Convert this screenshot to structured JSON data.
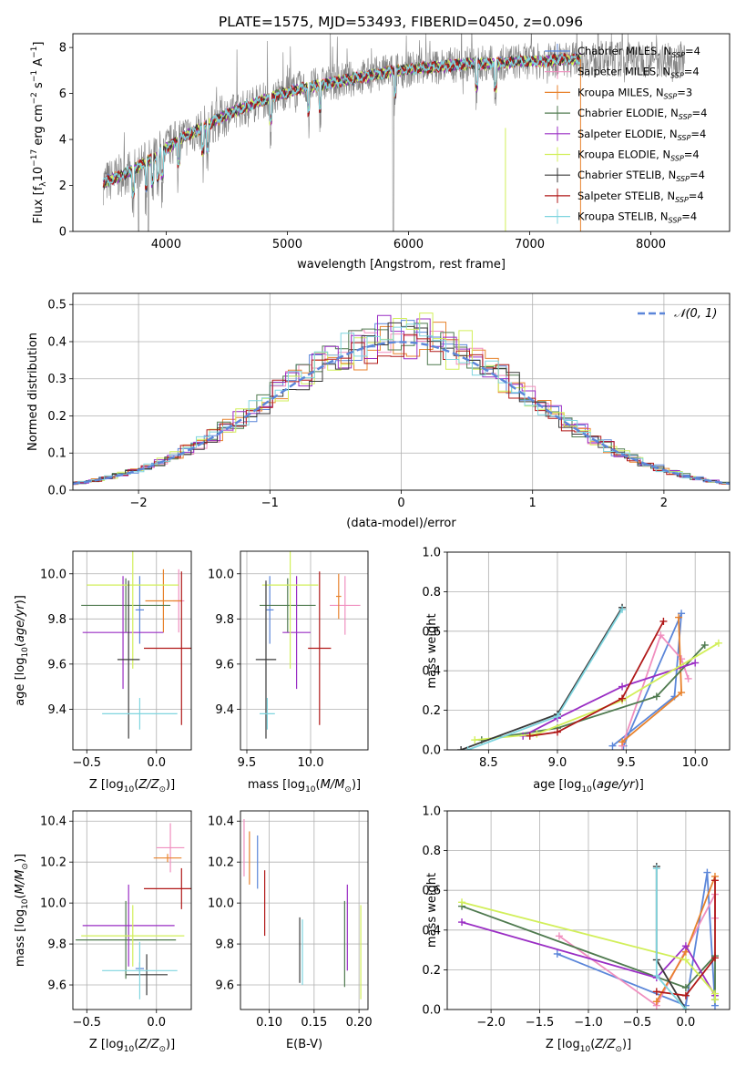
{
  "figure_title": "PLATE=1575, MJD=53493, FIBERID=0450, z=0.096",
  "colors": {
    "Chabrier MILES": "#5b86d9",
    "Salpeter MILES": "#f08fbf",
    "Kroupa MILES": "#e8822c",
    "Chabrier ELODIE": "#4f7a4f",
    "Salpeter ELODIE": "#9a2ec4",
    "Kroupa ELODIE": "#d2ef5a",
    "Chabrier STELIB": "#3a3a3a",
    "Salpeter STELIB": "#b01818",
    "Kroupa STELIB": "#7fd5df",
    "data": "#808080",
    "gaussian": "#5b86d9",
    "grid": "#b0b0b0"
  },
  "chart_data": [
    {
      "id": "spectrum",
      "type": "line",
      "xlabel": "wavelength [Angstrom, rest frame]",
      "ylabel": "Flux [f$_\\lambda$10$^{-17}$ erg cm$^{-2}$ s$^{-1}$ A$^{-1}$]",
      "xlim": [
        3230,
        8650
      ],
      "ylim": [
        0,
        8.6
      ],
      "xticks": [
        4000,
        5000,
        6000,
        7000,
        8000
      ],
      "yticks": [
        0,
        2,
        4,
        6,
        8
      ],
      "grid": false,
      "legend_position": "right",
      "legend": [
        {
          "label": "Chabrier MILES, N",
          "sub": "SSP",
          "suffix": "=4"
        },
        {
          "label": "Salpeter MILES, N",
          "sub": "SSP",
          "suffix": "=4"
        },
        {
          "label": "Kroupa MILES, N",
          "sub": "SSP",
          "suffix": "=3"
        },
        {
          "label": "Chabrier ELODIE, N",
          "sub": "SSP",
          "suffix": "=4"
        },
        {
          "label": "Salpeter ELODIE, N",
          "sub": "SSP",
          "suffix": "=4"
        },
        {
          "label": "Kroupa ELODIE, N",
          "sub": "SSP",
          "suffix": "=4"
        },
        {
          "label": "Chabrier STELIB, N",
          "sub": "SSP",
          "suffix": "=4"
        },
        {
          "label": "Salpeter STELIB, N",
          "sub": "SSP",
          "suffix": "=4"
        },
        {
          "label": "Kroupa STELIB, N",
          "sub": "SSP",
          "suffix": "=4"
        }
      ],
      "continuum": {
        "wavelength": [
          3480,
          3700,
          3900,
          4100,
          4300,
          4500,
          4700,
          4900,
          5100,
          5300,
          5500,
          5700,
          5900,
          6100,
          6300,
          6500,
          6700,
          6900,
          7100,
          7300,
          7420
        ],
        "flux": [
          2.1,
          2.6,
          3.2,
          4.0,
          4.5,
          5.1,
          5.5,
          5.9,
          6.2,
          6.4,
          6.6,
          6.8,
          7.0,
          7.1,
          7.2,
          7.3,
          7.3,
          7.4,
          7.4,
          7.5,
          7.5
        ]
      },
      "data_range": [
        3480,
        8280
      ],
      "model_range": [
        3480,
        7420
      ]
    },
    {
      "id": "residuals",
      "type": "line",
      "xlabel": "(data-model)/error",
      "ylabel": "Normed distribution",
      "xlim": [
        -2.5,
        2.5
      ],
      "ylim": [
        0,
        0.53
      ],
      "xticks": [
        -2,
        -1,
        0,
        1,
        2
      ],
      "yticks": [
        0.0,
        0.1,
        0.2,
        0.3,
        0.4,
        0.5
      ],
      "grid": true,
      "legend_position": "top-right",
      "gaussian_label": "N(0,1)",
      "bin_width": 0.1
    },
    {
      "id": "age_vs_Z",
      "type": "scatter",
      "xlabel": "Z [log10(Z/Z⊙)]",
      "ylabel": "age [log10(age/yr)]",
      "xlim": [
        -0.6,
        0.25
      ],
      "ylim": [
        9.22,
        10.1
      ],
      "xticks": [
        -0.5,
        0.0
      ],
      "yticks": [
        9.4,
        9.6,
        9.8,
        10.0
      ],
      "grid": true,
      "points": [
        {
          "model": "Chabrier MILES",
          "x": -0.12,
          "xerr": 0.03,
          "y": 9.84,
          "yerr": 0.15
        },
        {
          "model": "Salpeter MILES",
          "x": 0.16,
          "xerr": 0.04,
          "y": 9.88,
          "yerr": 0.14
        },
        {
          "model": "Kroupa MILES",
          "x": 0.05,
          "xerr": 0.13,
          "y": 9.88,
          "yerr": 0.14
        },
        {
          "model": "Chabrier ELODIE",
          "x": -0.22,
          "xerr": 0.32,
          "y": 9.86,
          "yerr": 0.12
        },
        {
          "model": "Salpeter ELODIE",
          "x": -0.24,
          "xerr": 0.29,
          "y": 9.74,
          "yerr": 0.25
        },
        {
          "model": "Kroupa ELODIE",
          "x": -0.17,
          "xerr": 0.33,
          "y": 9.95,
          "yerr": 0.37
        },
        {
          "model": "Chabrier STELIB",
          "x": -0.2,
          "xerr": 0.08,
          "y": 9.62,
          "yerr": 0.35
        },
        {
          "model": "Salpeter STELIB",
          "x": 0.18,
          "xerr": 0.27,
          "y": 9.67,
          "yerr": 0.34
        },
        {
          "model": "Kroupa STELIB",
          "x": -0.12,
          "xerr": 0.27,
          "y": 9.38,
          "yerr": 0.07
        }
      ]
    },
    {
      "id": "age_vs_mass",
      "type": "scatter",
      "xlabel": "mass [log10(M/M⊙)]",
      "ylabel": "",
      "xlim": [
        9.45,
        10.45
      ],
      "ylim": [
        9.22,
        10.1
      ],
      "xticks": [
        9.5,
        10.0
      ],
      "yticks": [
        9.4,
        9.6,
        9.8,
        10.0
      ],
      "grid": true,
      "points": [
        {
          "model": "Chabrier MILES",
          "x": 9.68,
          "xerr": 0.03,
          "y": 9.84,
          "yerr": 0.15
        },
        {
          "model": "Salpeter MILES",
          "x": 10.27,
          "xerr": 0.12,
          "y": 9.86,
          "yerr": 0.13
        },
        {
          "model": "Kroupa MILES",
          "x": 10.22,
          "xerr": 0.02,
          "y": 9.9,
          "yerr": 0.1
        },
        {
          "model": "Chabrier ELODIE",
          "x": 9.82,
          "xerr": 0.22,
          "y": 9.86,
          "yerr": 0.12
        },
        {
          "model": "Salpeter ELODIE",
          "x": 9.89,
          "xerr": 0.11,
          "y": 9.74,
          "yerr": 0.25
        },
        {
          "model": "Kroupa ELODIE",
          "x": 9.84,
          "xerr": 0.22,
          "y": 9.95,
          "yerr": 0.37
        },
        {
          "model": "Chabrier STELIB",
          "x": 9.65,
          "xerr": 0.08,
          "y": 9.62,
          "yerr": 0.35
        },
        {
          "model": "Salpeter STELIB",
          "x": 10.07,
          "xerr": 0.09,
          "y": 9.67,
          "yerr": 0.34
        },
        {
          "model": "Kroupa STELIB",
          "x": 9.66,
          "xerr": 0.06,
          "y": 9.38,
          "yerr": 0.07
        }
      ]
    },
    {
      "id": "mass_weight_vs_age",
      "type": "line",
      "xlabel": "age [log10(age/yr)]",
      "ylabel": "mass weight",
      "xlim": [
        8.2,
        10.25
      ],
      "ylim": [
        0,
        1.0
      ],
      "xticks": [
        8.5,
        9.0,
        9.5,
        10.0
      ],
      "yticks": [
        0.0,
        0.2,
        0.4,
        0.6,
        0.8,
        1.0
      ],
      "grid": true,
      "series": [
        {
          "model": "Chabrier MILES",
          "x": [
            9.4,
            9.85,
            9.9,
            9.48
          ],
          "y": [
            0.02,
            0.27,
            0.69,
            0.02
          ]
        },
        {
          "model": "Salpeter MILES",
          "x": [
            9.47,
            9.75,
            9.9,
            9.95
          ],
          "y": [
            0.02,
            0.58,
            0.46,
            0.36
          ]
        },
        {
          "model": "Kroupa MILES",
          "x": [
            9.47,
            9.9,
            9.88
          ],
          "y": [
            0.04,
            0.29,
            0.67
          ]
        },
        {
          "model": "Chabrier ELODIE",
          "x": [
            8.45,
            9.0,
            9.72,
            10.07
          ],
          "y": [
            0.05,
            0.11,
            0.27,
            0.53
          ]
        },
        {
          "model": "Salpeter ELODIE",
          "x": [
            8.75,
            9.0,
            9.47,
            10.0
          ],
          "y": [
            0.07,
            0.16,
            0.32,
            0.44
          ]
        },
        {
          "model": "Kroupa ELODIE",
          "x": [
            8.4,
            8.85,
            9.47,
            10.17
          ],
          "y": [
            0.05,
            0.08,
            0.25,
            0.54
          ]
        },
        {
          "model": "Chabrier STELIB",
          "x": [
            8.3,
            9.0,
            9.47
          ],
          "y": [
            0.0,
            0.18,
            0.72
          ]
        },
        {
          "model": "Salpeter STELIB",
          "x": [
            8.8,
            9.0,
            9.47,
            9.77
          ],
          "y": [
            0.07,
            0.09,
            0.26,
            0.65
          ]
        },
        {
          "model": "Kroupa STELIB",
          "x": [
            8.35,
            9.0,
            9.47
          ],
          "y": [
            0.0,
            0.17,
            0.71
          ]
        }
      ]
    },
    {
      "id": "mass_vs_Z",
      "type": "scatter",
      "xlabel": "Z [log10(Z/Z⊙)]",
      "ylabel": "mass [log10(M/M⊙)]",
      "xlim": [
        -0.6,
        0.25
      ],
      "ylim": [
        9.48,
        10.45
      ],
      "xticks": [
        -0.5,
        0.0
      ],
      "yticks": [
        9.6,
        9.8,
        10.0,
        10.2,
        10.4
      ],
      "grid": true,
      "points": [
        {
          "model": "Chabrier MILES",
          "x": -0.12,
          "xerr": 0.03,
          "y": 9.68,
          "yerr": 0.03
        },
        {
          "model": "Salpeter MILES",
          "x": 0.1,
          "xerr": 0.1,
          "y": 10.27,
          "yerr": 0.12
        },
        {
          "model": "Kroupa MILES",
          "x": 0.08,
          "xerr": 0.1,
          "y": 10.22,
          "yerr": 0.02
        },
        {
          "model": "Chabrier ELODIE",
          "x": -0.22,
          "xerr": 0.36,
          "y": 9.82,
          "yerr": 0.19
        },
        {
          "model": "Salpeter ELODIE",
          "x": -0.2,
          "xerr": 0.33,
          "y": 9.89,
          "yerr": 0.2
        },
        {
          "model": "Kroupa ELODIE",
          "x": -0.17,
          "xerr": 0.37,
          "y": 9.84,
          "yerr": 0.15
        },
        {
          "model": "Chabrier STELIB",
          "x": -0.07,
          "xerr": 0.15,
          "y": 9.65,
          "yerr": 0.1
        },
        {
          "model": "Salpeter STELIB",
          "x": 0.18,
          "xerr": 0.27,
          "y": 10.07,
          "yerr": 0.1
        },
        {
          "model": "Kroupa STELIB",
          "x": -0.12,
          "xerr": 0.27,
          "y": 9.67,
          "yerr": 0.14
        }
      ]
    },
    {
      "id": "mass_vs_ebv",
      "type": "scatter",
      "xlabel": "E(B-V)",
      "ylabel": "",
      "xlim": [
        0.068,
        0.21
      ],
      "ylim": [
        9.48,
        10.45
      ],
      "xticks": [
        0.1,
        0.15,
        0.2
      ],
      "yticks": [
        9.6,
        9.8,
        10.0,
        10.2,
        10.4
      ],
      "grid": true,
      "points": [
        {
          "model": "Chabrier MILES",
          "x": 0.087,
          "y": 10.2,
          "yerr": 0.13
        },
        {
          "model": "Salpeter MILES",
          "x": 0.072,
          "y": 10.27,
          "yerr": 0.14
        },
        {
          "model": "Kroupa MILES",
          "x": 0.078,
          "y": 10.22,
          "yerr": 0.13
        },
        {
          "model": "Chabrier ELODIE",
          "x": 0.184,
          "y": 9.8,
          "yerr": 0.21
        },
        {
          "model": "Salpeter ELODIE",
          "x": 0.187,
          "y": 9.88,
          "yerr": 0.21
        },
        {
          "model": "Kroupa ELODIE",
          "x": 0.202,
          "y": 9.76,
          "yerr": 0.23
        },
        {
          "model": "Chabrier STELIB",
          "x": 0.134,
          "y": 9.77,
          "yerr": 0.16
        },
        {
          "model": "Salpeter STELIB",
          "x": 0.095,
          "y": 10.0,
          "yerr": 0.16
        },
        {
          "model": "Kroupa STELIB",
          "x": 0.137,
          "y": 9.76,
          "yerr": 0.16
        }
      ]
    },
    {
      "id": "mass_weight_vs_Z",
      "type": "line",
      "xlabel": "Z [log10(Z/Z⊙)]",
      "ylabel": "mass weight",
      "xlim": [
        -2.45,
        0.45
      ],
      "ylim": [
        0,
        1.0
      ],
      "xticks": [
        -2.0,
        -1.5,
        -1.0,
        -0.5,
        0.0
      ],
      "yticks": [
        0.0,
        0.2,
        0.4,
        0.6,
        0.8,
        1.0
      ],
      "grid": true,
      "series": [
        {
          "model": "Chabrier MILES",
          "x": [
            -1.32,
            0.0,
            0.22,
            0.3
          ],
          "y": [
            0.28,
            0.02,
            0.69,
            0.02
          ]
        },
        {
          "model": "Salpeter MILES",
          "x": [
            -1.3,
            -0.3,
            0.3,
            0.3
          ],
          "y": [
            0.37,
            0.02,
            0.58,
            0.46
          ]
        },
        {
          "model": "Kroupa MILES",
          "x": [
            -0.3,
            0.0,
            0.3
          ],
          "y": [
            0.04,
            0.29,
            0.67
          ]
        },
        {
          "model": "Chabrier ELODIE",
          "x": [
            -2.3,
            0.0,
            0.3,
            0.3
          ],
          "y": [
            0.52,
            0.11,
            0.27,
            0.05
          ]
        },
        {
          "model": "Salpeter ELODIE",
          "x": [
            -2.3,
            -0.3,
            0.0,
            0.3
          ],
          "y": [
            0.44,
            0.16,
            0.32,
            0.07
          ]
        },
        {
          "model": "Kroupa ELODIE",
          "x": [
            -2.3,
            0.0,
            0.3,
            0.3
          ],
          "y": [
            0.54,
            0.25,
            0.08,
            0.05
          ]
        },
        {
          "model": "Chabrier STELIB",
          "x": [
            -0.3,
            -0.3,
            0.0
          ],
          "y": [
            0.72,
            0.25,
            0.0
          ]
        },
        {
          "model": "Salpeter STELIB",
          "x": [
            -0.3,
            0.0,
            0.3,
            0.3
          ],
          "y": [
            0.09,
            0.07,
            0.26,
            0.65
          ]
        },
        {
          "model": "Kroupa STELIB",
          "x": [
            -0.3,
            -0.3,
            0.0
          ],
          "y": [
            0.71,
            0.17,
            0.0
          ]
        }
      ]
    }
  ]
}
